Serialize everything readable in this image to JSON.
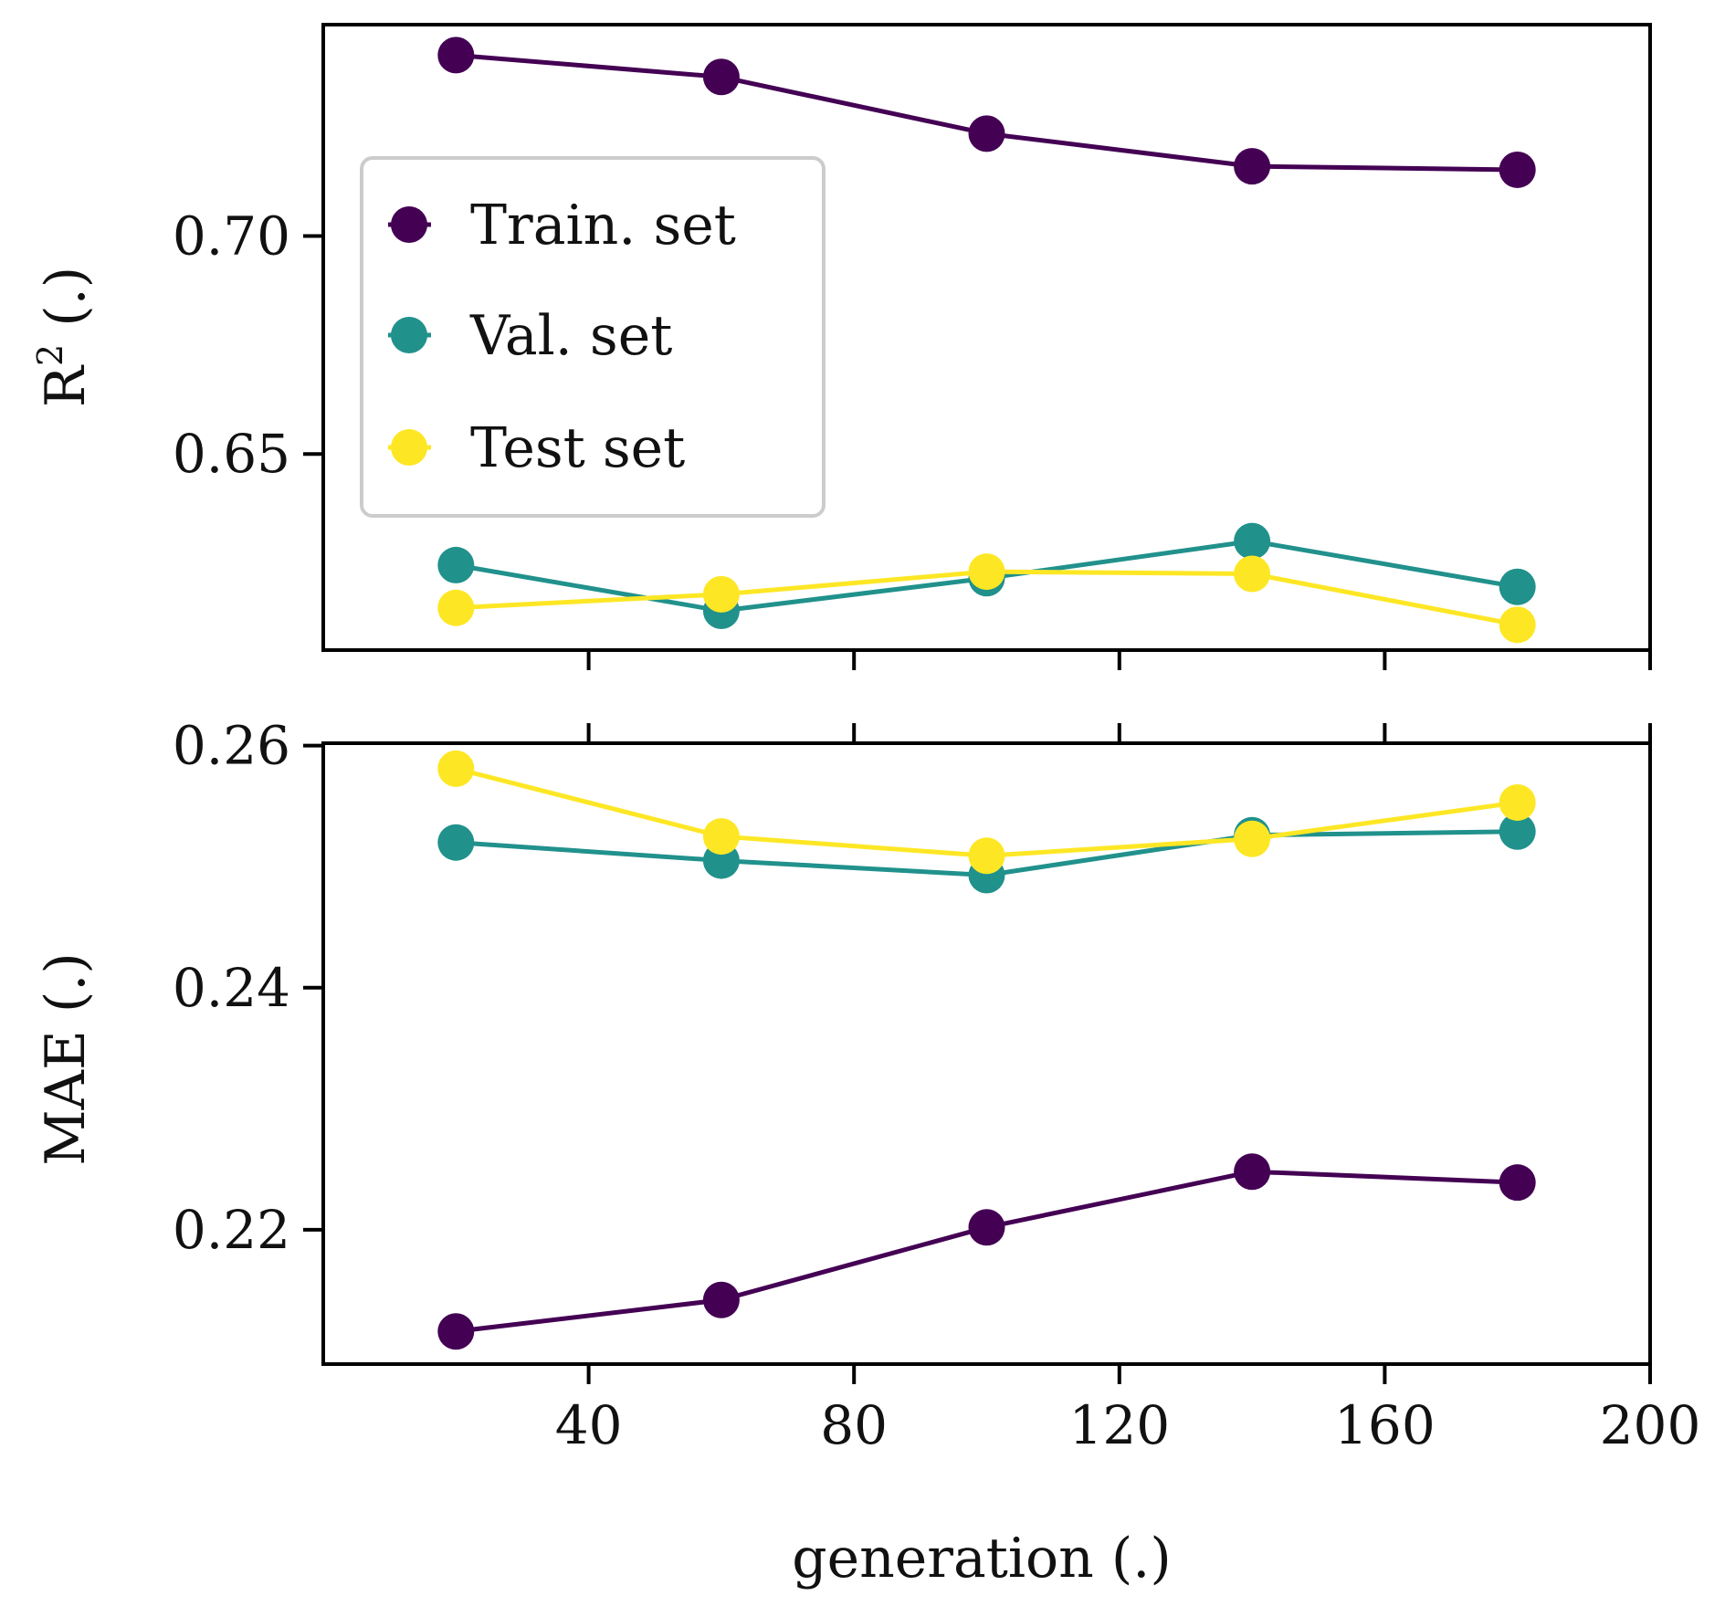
{
  "chart_data": [
    {
      "type": "line",
      "panel": "top",
      "title": "",
      "xlabel": "",
      "ylabel": "R",
      "ylabel_sup": "2",
      "ylabel_suffix": " (.)",
      "x": [
        20,
        60,
        100,
        140,
        180
      ],
      "xlim": [
        0,
        200
      ],
      "ylim": [
        0.605,
        0.7485
      ],
      "xticks": [
        40,
        80,
        120,
        160,
        200
      ],
      "yticks": [
        0.65,
        0.7
      ],
      "ytick_labels": [
        "0.65",
        "0.70"
      ],
      "legend_position": "upper-left",
      "series": [
        {
          "name": "Train. set",
          "color": "#440154",
          "values": [
            0.7415,
            0.7365,
            0.7235,
            0.716,
            0.7152
          ]
        },
        {
          "name": "Val. set",
          "color": "#21918c",
          "values": [
            0.6245,
            0.614,
            0.6215,
            0.63,
            0.6195
          ]
        },
        {
          "name": "Test set",
          "color": "#fde725",
          "values": [
            0.6147,
            0.6178,
            0.623,
            0.6225,
            0.6108
          ]
        }
      ]
    },
    {
      "type": "line",
      "panel": "bottom",
      "title": "",
      "xlabel": "generation (.)",
      "ylabel": "MAE (.)",
      "x": [
        20,
        60,
        100,
        140,
        180
      ],
      "xlim": [
        0,
        200
      ],
      "ylim": [
        0.2089,
        0.2602
      ],
      "xticks": [
        40,
        80,
        120,
        160,
        200
      ],
      "xtick_labels": [
        "40",
        "80",
        "120",
        "160",
        "200"
      ],
      "yticks": [
        0.22,
        0.24,
        0.26
      ],
      "ytick_labels": [
        "0.22",
        "0.24",
        "0.26"
      ],
      "series": [
        {
          "name": "Train. set",
          "color": "#440154",
          "values": [
            0.2116,
            0.2142,
            0.2202,
            0.2248,
            0.2239
          ]
        },
        {
          "name": "Val. set",
          "color": "#21918c",
          "values": [
            0.252,
            0.2505,
            0.2493,
            0.2526,
            0.2529
          ]
        },
        {
          "name": "Test set",
          "color": "#fde725",
          "values": [
            0.2581,
            0.2525,
            0.2509,
            0.2523,
            0.2553
          ]
        }
      ]
    }
  ]
}
